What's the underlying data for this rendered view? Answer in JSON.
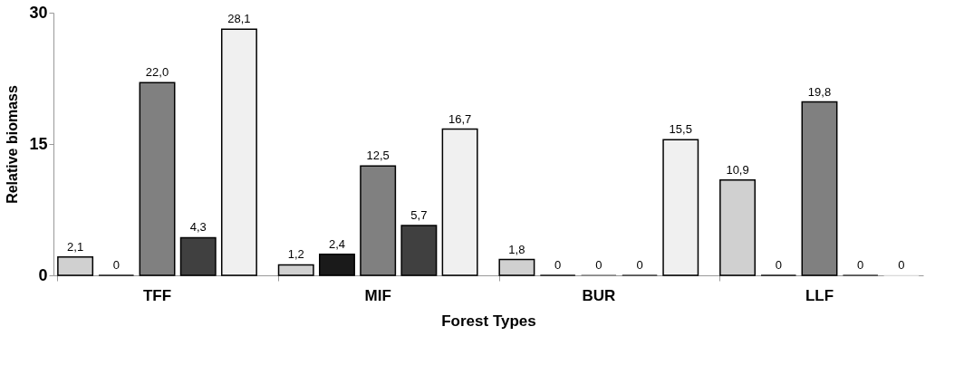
{
  "chart_data": {
    "type": "bar",
    "xlabel": "Forest Types",
    "ylabel": "Relative biomass",
    "categories": [
      "TFF",
      "MIF",
      "BUR",
      "LLF"
    ],
    "series": [
      {
        "color": "#d0d0d0",
        "values": [
          2.1,
          1.2,
          1.8,
          10.9
        ],
        "value_labels": [
          "2,1",
          "1,2",
          "1,8",
          "10,9"
        ]
      },
      {
        "color": "#1a1a1a",
        "values": [
          0,
          2.4,
          0,
          0
        ],
        "value_labels": [
          "0",
          "2,4",
          "0",
          "0"
        ]
      },
      {
        "color": "#808080",
        "values": [
          22.0,
          12.5,
          0,
          19.8
        ],
        "value_labels": [
          "22,0",
          "12,5",
          "0",
          "19,8"
        ]
      },
      {
        "color": "#404040",
        "values": [
          4.3,
          5.7,
          0,
          0
        ],
        "value_labels": [
          "4,3",
          "5,7",
          "0",
          "0"
        ]
      },
      {
        "color": "#f0f0f0",
        "values": [
          28.1,
          16.7,
          15.5,
          0
        ],
        "value_labels": [
          "28,1",
          "16,7",
          "15,5",
          "0"
        ]
      }
    ],
    "ylim": [
      0,
      30
    ],
    "yticks": [
      0,
      15,
      30
    ],
    "grid": false,
    "legend": false
  }
}
